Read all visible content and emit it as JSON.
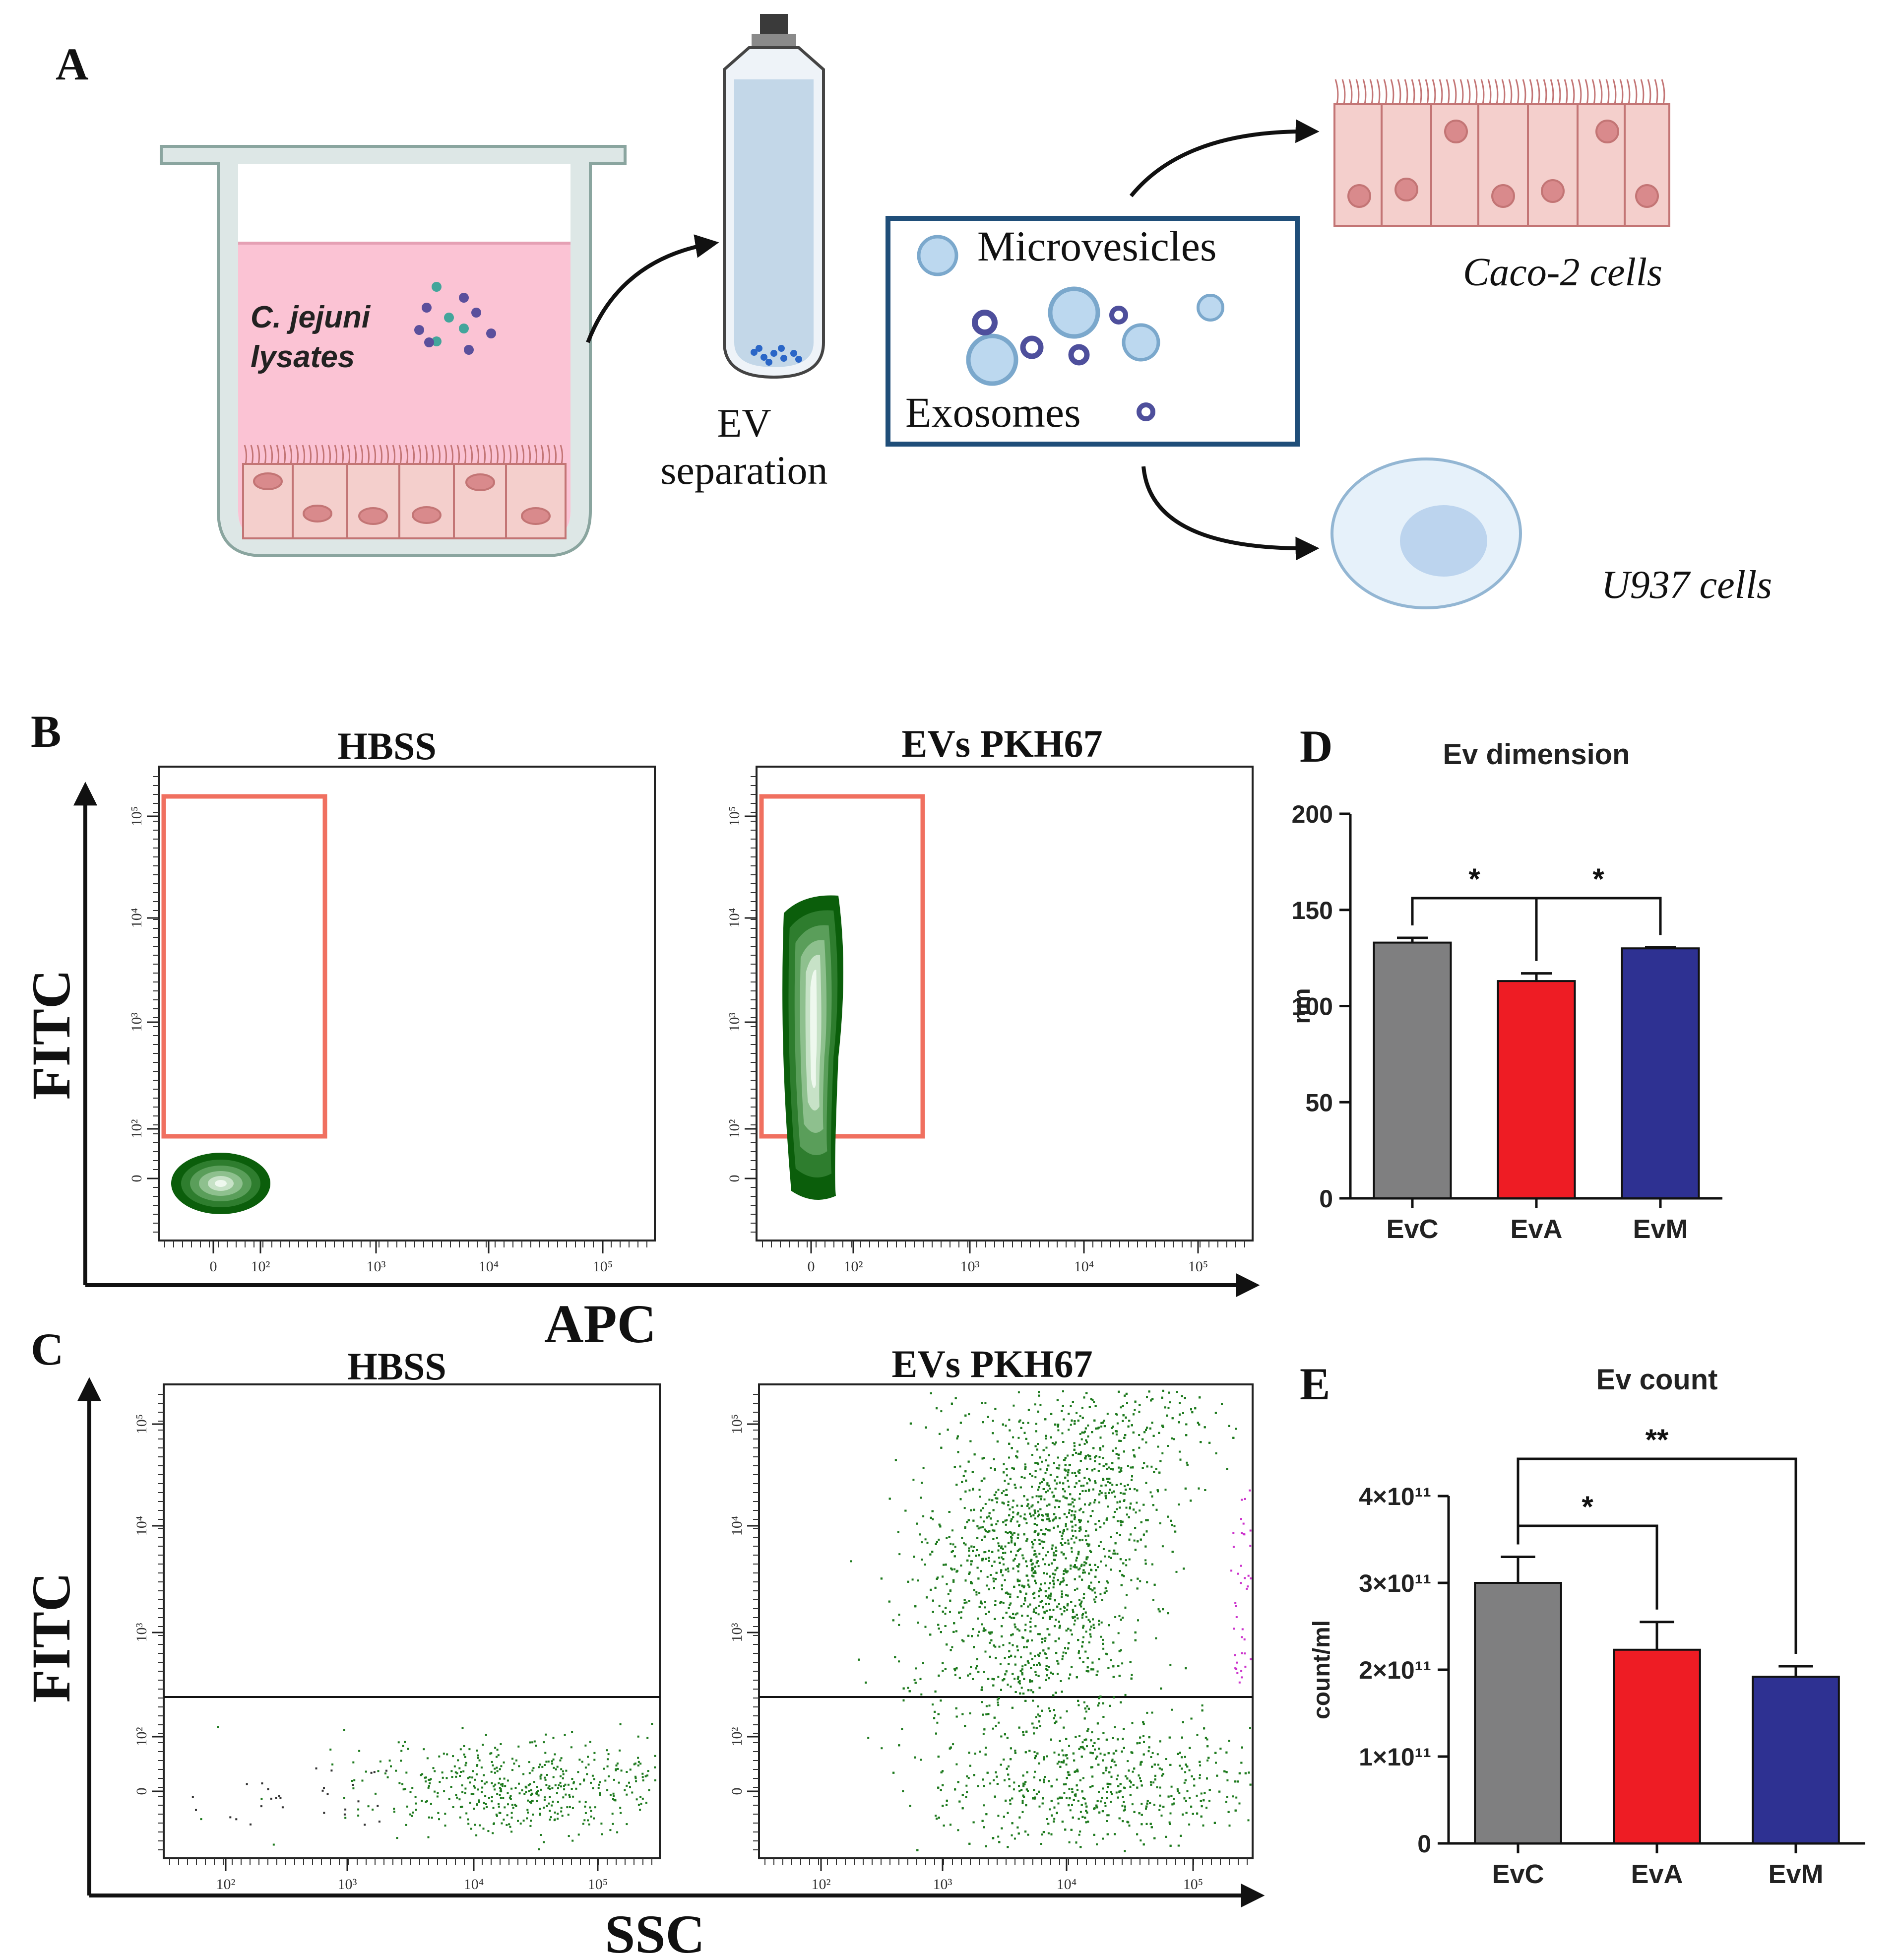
{
  "panel_labels": {
    "a": "A",
    "b": "B",
    "c": "C",
    "d": "D",
    "e": "E"
  },
  "schematic": {
    "lysates_line1": "C. jejuni",
    "lysates_line2": "lysates",
    "ev_line1": "EV",
    "ev_line2": "separation",
    "microvesicles": "Microvesicles",
    "exosomes": "Exosomes",
    "caco2": "Caco-2 cells",
    "u937": "U937 cells"
  },
  "flow_b": {
    "y_axis": "FITC",
    "x_axis": "APC",
    "left_title": "HBSS",
    "right_title": "EVs PKH67",
    "x_ticks": [
      "0",
      "10²",
      "10³",
      "10⁴",
      "10⁵"
    ],
    "y_ticks": [
      "0",
      "10²",
      "10³",
      "10⁴",
      "10⁵"
    ]
  },
  "flow_c": {
    "y_axis": "FITC",
    "x_axis": "SSC",
    "left_title": "HBSS",
    "right_title": "EVs PKH67",
    "x_ticks": [
      "10²",
      "10³",
      "10⁴",
      "10⁵"
    ],
    "y_ticks": [
      "0",
      "10²",
      "10³",
      "10⁴",
      "10⁵"
    ]
  },
  "colors": {
    "evc": "#7f7f80",
    "eva": "#ee1c24",
    "evm": "#2e3192",
    "gate": "#f07060",
    "density_dark": "#0b5e0b",
    "scatter": "#1e7a1e",
    "schematic_box": "#1f4e79"
  },
  "chart_data": [
    {
      "type": "bar",
      "title": "Ev dimension",
      "categories": [
        "EvC",
        "EvA",
        "EvM"
      ],
      "values": [
        133,
        113,
        130
      ],
      "errors": [
        2.5,
        4,
        0.5
      ],
      "ylabel": "nm",
      "xlabel": "",
      "ylim": [
        0,
        200
      ],
      "yticks": [
        0,
        50,
        100,
        150,
        200
      ],
      "ytick_labels": [
        "0",
        "50",
        "100",
        "150",
        "200"
      ],
      "significance": [
        {
          "from": 0,
          "to": 1,
          "label": "*"
        },
        {
          "from": 1,
          "to": 2,
          "label": "*"
        }
      ]
    },
    {
      "type": "bar",
      "title": "Ev count",
      "categories": [
        "EvC",
        "EvA",
        "EvM"
      ],
      "values": [
        300000000000.0,
        223000000000.0,
        192000000000.0
      ],
      "errors": [
        30000000000.0,
        32000000000.0,
        12000000000.0
      ],
      "ylabel": "count/ml",
      "xlabel": "",
      "ylim": [
        0,
        400000000000.0
      ],
      "yticks": [
        0,
        100000000000.0,
        200000000000.0,
        300000000000.0,
        400000000000.0
      ],
      "ytick_labels": [
        "0",
        "1×10¹¹",
        "2×10¹¹",
        "3×10¹¹",
        "4×10¹¹"
      ],
      "significance": [
        {
          "from": 0,
          "to": 1,
          "label": "*"
        },
        {
          "from": 0,
          "to": 2,
          "label": "**"
        }
      ]
    }
  ]
}
